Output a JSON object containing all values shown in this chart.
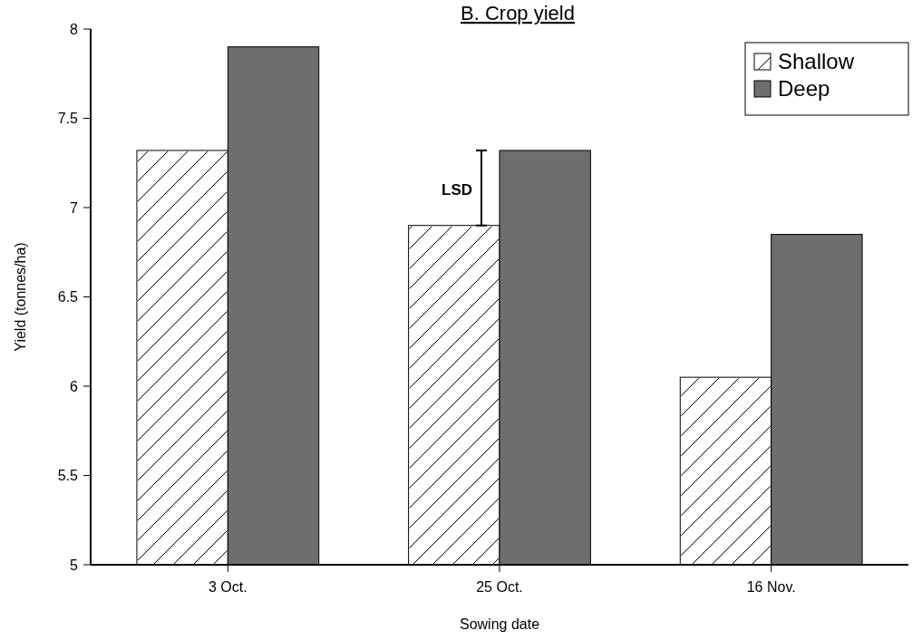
{
  "chart_data": {
    "type": "bar",
    "title": "B. Crop yield",
    "xlabel": "Sowing date",
    "ylabel": "Yield (tonnes/ha)",
    "categories": [
      "3 Oct.",
      "25 Oct.",
      "16 Nov."
    ],
    "series": [
      {
        "name": "Shallow",
        "color": "#ffffff",
        "values": [
          7.32,
          6.9,
          6.05
        ]
      },
      {
        "name": "Deep",
        "color": "#6e6e6e",
        "values": [
          7.9,
          7.32,
          6.85
        ]
      }
    ],
    "ylim": [
      5,
      8
    ],
    "yticks": [
      5,
      5.5,
      6,
      6.5,
      7,
      7.5,
      8
    ],
    "legend": "top right",
    "annotations": [
      {
        "text": "LSD",
        "x": "25 Oct.",
        "y": 7.1
      }
    ]
  }
}
